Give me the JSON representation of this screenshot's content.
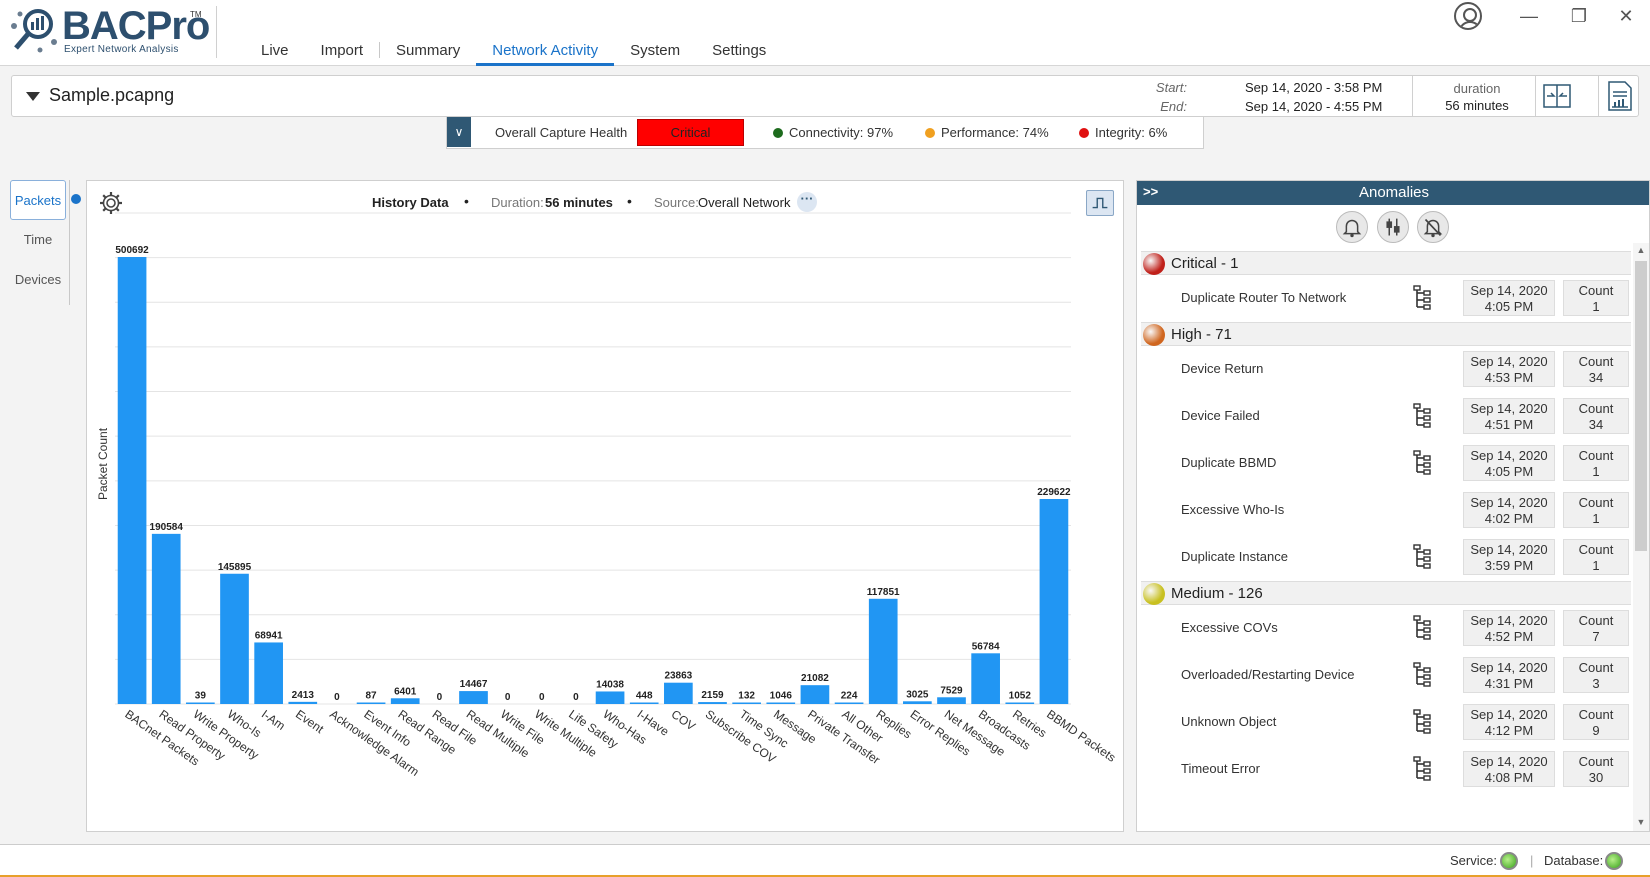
{
  "app": {
    "logo_text": "BACPro",
    "logo_tm": "TM",
    "logo_sub": "Expert Network Analysis"
  },
  "nav": {
    "tabs": [
      "Live",
      "Import",
      "Summary",
      "Network Activity",
      "System",
      "Settings"
    ],
    "active": "Network Activity"
  },
  "file": {
    "name": "Sample.pcapng",
    "start_label": "Start:",
    "start_value": "Sep 14, 2020 - 3:58 PM",
    "end_label": "End:",
    "end_value": "Sep 14, 2020 - 4:55 PM",
    "duration_label": "duration",
    "duration_value": "56 minutes"
  },
  "health": {
    "label": "Overall Capture Health",
    "status": "Critical",
    "status_color": "#ff0000",
    "metrics": [
      {
        "label": "Connectivity:",
        "value": "97%",
        "color": "#1d6b1d"
      },
      {
        "label": "Performance:",
        "value": "74%",
        "color": "#f0a020"
      },
      {
        "label": "Integrity:",
        "value": "6%",
        "color": "#e01010"
      }
    ]
  },
  "side_tabs": [
    "Packets",
    "Time",
    "Devices"
  ],
  "chart_header": {
    "title": "History Data",
    "duration_key": "Duration:",
    "duration_value": "56 minutes",
    "source_key": "Source:",
    "source_value": "Overall Network",
    "more": "···"
  },
  "chart_data": {
    "type": "bar",
    "ylabel": "Packet Count",
    "xlabel": "",
    "bar_color": "#2196f3",
    "ylim": [
      0,
      550000
    ],
    "grid": true,
    "categories": [
      "BACnet Packets",
      "Read Property",
      "Write Property",
      "Who-Is",
      "I-Am",
      "Event",
      "Acknowledge Alarm",
      "Event Info",
      "Read Range",
      "Read File",
      "Read Multiple",
      "Write File",
      "Write Multiple",
      "Life Safety",
      "Who-Has",
      "I-Have",
      "COV",
      "Subscribe COV",
      "Time Sync",
      "Message",
      "Private Transfer",
      "All Other",
      "Replies",
      "Error Replies",
      "Net Message",
      "Broadcasts",
      "Retries",
      "BBMD Packets"
    ],
    "values": [
      500692,
      190584,
      39,
      145895,
      68941,
      2413,
      0,
      87,
      6401,
      0,
      14467,
      0,
      0,
      0,
      14038,
      448,
      23863,
      2159,
      132,
      1046,
      21082,
      224,
      117851,
      3025,
      7529,
      56784,
      1052,
      229622
    ]
  },
  "anomalies": {
    "title": "Anomalies",
    "expand": ">>",
    "groups": [
      {
        "title": "Critical - 1",
        "color": "#c0201a",
        "items": [
          {
            "name": "Duplicate Router To Network",
            "date": "Sep 14, 2020",
            "time": "4:05 PM",
            "count_label": "Count",
            "count": "1",
            "tree": true
          }
        ]
      },
      {
        "title": "High - 71",
        "color": "#d0661f",
        "items": [
          {
            "name": "Device Return",
            "date": "Sep 14, 2020",
            "time": "4:53 PM",
            "count_label": "Count",
            "count": "34",
            "tree": false
          },
          {
            "name": "Device Failed",
            "date": "Sep 14, 2020",
            "time": "4:51 PM",
            "count_label": "Count",
            "count": "34",
            "tree": true
          },
          {
            "name": "Duplicate BBMD",
            "date": "Sep 14, 2020",
            "time": "4:05 PM",
            "count_label": "Count",
            "count": "1",
            "tree": true
          },
          {
            "name": "Excessive Who-Is",
            "date": "Sep 14, 2020",
            "time": "4:02 PM",
            "count_label": "Count",
            "count": "1",
            "tree": false
          },
          {
            "name": "Duplicate Instance",
            "date": "Sep 14, 2020",
            "time": "3:59 PM",
            "count_label": "Count",
            "count": "1",
            "tree": true
          }
        ]
      },
      {
        "title": "Medium - 126",
        "color": "#c8c020",
        "items": [
          {
            "name": "Excessive COVs",
            "date": "Sep 14, 2020",
            "time": "4:52 PM",
            "count_label": "Count",
            "count": "7",
            "tree": true
          },
          {
            "name": "Overloaded/Restarting Device",
            "date": "Sep 14, 2020",
            "time": "4:31 PM",
            "count_label": "Count",
            "count": "3",
            "tree": true
          },
          {
            "name": "Unknown Object",
            "date": "Sep 14, 2020",
            "time": "4:12 PM",
            "count_label": "Count",
            "count": "9",
            "tree": true
          },
          {
            "name": "Timeout Error",
            "date": "Sep 14, 2020",
            "time": "4:08 PM",
            "count_label": "Count",
            "count": "30",
            "tree": true
          }
        ]
      }
    ]
  },
  "status": {
    "service_label": "Service:",
    "database_label": "Database:",
    "separator": "|"
  }
}
